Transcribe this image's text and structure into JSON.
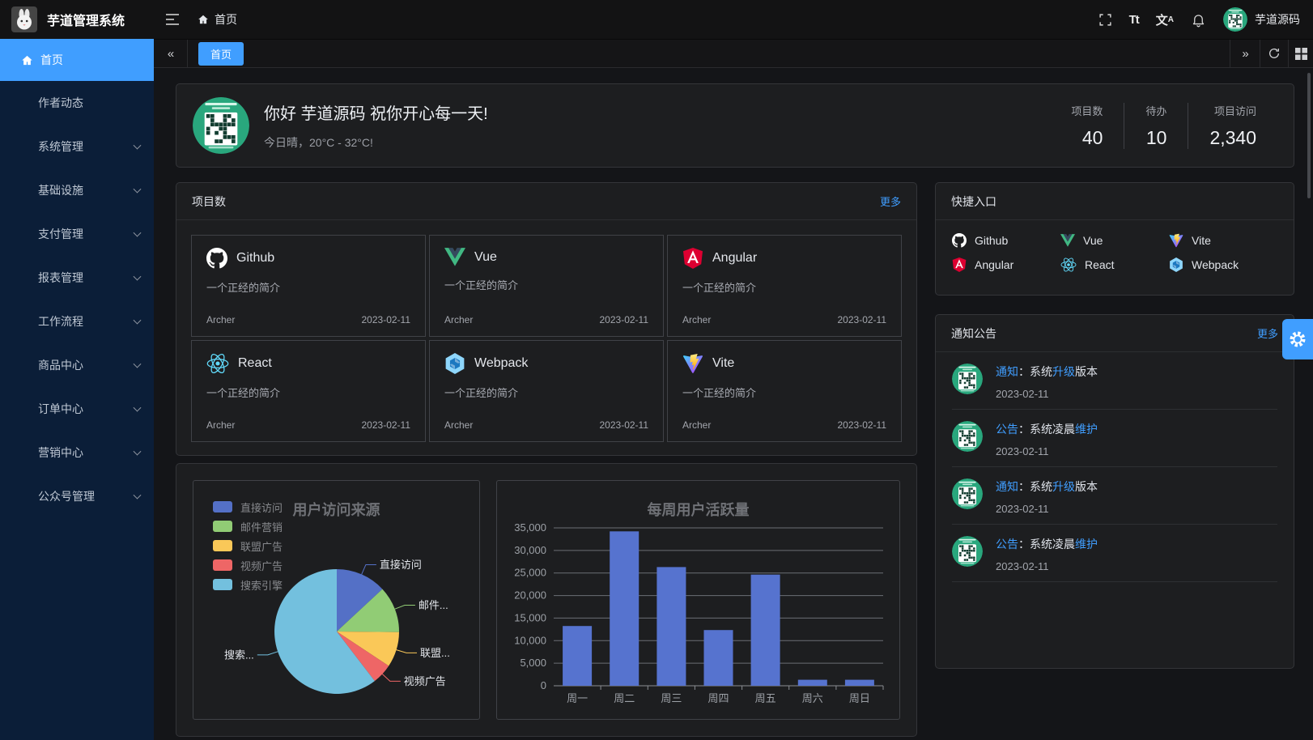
{
  "app": {
    "title": "芋道管理系统",
    "username": "芋道源码"
  },
  "header": {
    "breadcrumb": "首页",
    "font_icon_label": "Tt",
    "lang_primary": "文",
    "lang_secondary": "A"
  },
  "tabbar": {
    "active_tab": "首页"
  },
  "sidebar": {
    "items": [
      {
        "label": "首页",
        "active": true,
        "icon": "home",
        "arrow": false
      },
      {
        "label": "作者动态",
        "active": false,
        "arrow": false
      },
      {
        "label": "系统管理",
        "active": false,
        "arrow": true
      },
      {
        "label": "基础设施",
        "active": false,
        "arrow": true
      },
      {
        "label": "支付管理",
        "active": false,
        "arrow": true
      },
      {
        "label": "报表管理",
        "active": false,
        "arrow": true
      },
      {
        "label": "工作流程",
        "active": false,
        "arrow": true
      },
      {
        "label": "商品中心",
        "active": false,
        "arrow": true
      },
      {
        "label": "订单中心",
        "active": false,
        "arrow": true
      },
      {
        "label": "营销中心",
        "active": false,
        "arrow": true
      },
      {
        "label": "公众号管理",
        "active": false,
        "arrow": true
      }
    ]
  },
  "welcome": {
    "greeting": "你好 芋道源码 祝你开心每一天!",
    "weather": "今日晴，20°C - 32°C!",
    "stats": [
      {
        "label": "项目数",
        "value": "40"
      },
      {
        "label": "待办",
        "value": "10"
      },
      {
        "label": "项目访问",
        "value": "2,340"
      }
    ]
  },
  "projects": {
    "title": "项目数",
    "more": "更多",
    "items": [
      {
        "name": "Github",
        "icon": "github",
        "desc": "一个正经的简介",
        "author": "Archer",
        "date": "2023-02-11"
      },
      {
        "name": "Vue",
        "icon": "vue",
        "desc": "一个正经的简介",
        "author": "Archer",
        "date": "2023-02-11"
      },
      {
        "name": "Angular",
        "icon": "angular",
        "desc": "一个正经的简介",
        "author": "Archer",
        "date": "2023-02-11"
      },
      {
        "name": "React",
        "icon": "react",
        "desc": "一个正经的简介",
        "author": "Archer",
        "date": "2023-02-11"
      },
      {
        "name": "Webpack",
        "icon": "webpack",
        "desc": "一个正经的简介",
        "author": "Archer",
        "date": "2023-02-11"
      },
      {
        "name": "Vite",
        "icon": "vite",
        "desc": "一个正经的简介",
        "author": "Archer",
        "date": "2023-02-11"
      }
    ]
  },
  "shortcuts": {
    "title": "快捷入口",
    "items": [
      {
        "name": "Github",
        "icon": "github"
      },
      {
        "name": "Vue",
        "icon": "vue"
      },
      {
        "name": "Vite",
        "icon": "vite"
      },
      {
        "name": "Angular",
        "icon": "angular"
      },
      {
        "name": "React",
        "icon": "react"
      },
      {
        "name": "Webpack",
        "icon": "webpack"
      }
    ]
  },
  "notices": {
    "title": "通知公告",
    "more": "更多",
    "items": [
      {
        "segments": [
          {
            "text": "通知",
            "hl": true
          },
          {
            "text": "：系统",
            "hl": false
          },
          {
            "text": "升级",
            "hl": true
          },
          {
            "text": "版本",
            "hl": false
          }
        ],
        "date": "2023-02-11"
      },
      {
        "segments": [
          {
            "text": "公告",
            "hl": true
          },
          {
            "text": "：系统凌晨",
            "hl": false
          },
          {
            "text": "维护",
            "hl": true
          }
        ],
        "date": "2023-02-11"
      },
      {
        "segments": [
          {
            "text": "通知",
            "hl": true
          },
          {
            "text": "：系统",
            "hl": false
          },
          {
            "text": "升级",
            "hl": true
          },
          {
            "text": "版本",
            "hl": false
          }
        ],
        "date": "2023-02-11"
      },
      {
        "segments": [
          {
            "text": "公告",
            "hl": true
          },
          {
            "text": "：系统凌晨",
            "hl": false
          },
          {
            "text": "维护",
            "hl": true
          }
        ],
        "date": "2023-02-11"
      }
    ]
  },
  "chart_data": [
    {
      "type": "pie",
      "title": "用户访问来源",
      "legend_position": "top-left",
      "legend": [
        "直接访问",
        "邮件营销",
        "联盟广告",
        "视频广告",
        "搜索引擎"
      ],
      "series": [
        {
          "name": "直接访问",
          "value": 335,
          "color": "#5470c6",
          "label": "直接访问"
        },
        {
          "name": "邮件营销",
          "value": 310,
          "color": "#91cc75",
          "label": "邮件..."
        },
        {
          "name": "联盟广告",
          "value": 234,
          "color": "#fac858",
          "label": "联盟..."
        },
        {
          "name": "视频广告",
          "value": 135,
          "color": "#ee6666",
          "label": "视频广告"
        },
        {
          "name": "搜索引擎",
          "value": 1548,
          "color": "#73c0de",
          "label": "搜索..."
        }
      ]
    },
    {
      "type": "bar",
      "title": "每周用户活跃量",
      "categories": [
        "周一",
        "周二",
        "周三",
        "周四",
        "周五",
        "周六",
        "周日"
      ],
      "values": [
        13253,
        34235,
        26321,
        12340,
        24643,
        1322,
        1324
      ],
      "ylim": [
        0,
        35000
      ],
      "ytick_step": 5000,
      "grid": true,
      "bar_color": "#5673cf"
    }
  ],
  "colors": {
    "accent": "#409eff",
    "sidebar_bg": "#0b1e38",
    "card_bg": "#1d1e20",
    "avatar_green": "#29a77d"
  }
}
